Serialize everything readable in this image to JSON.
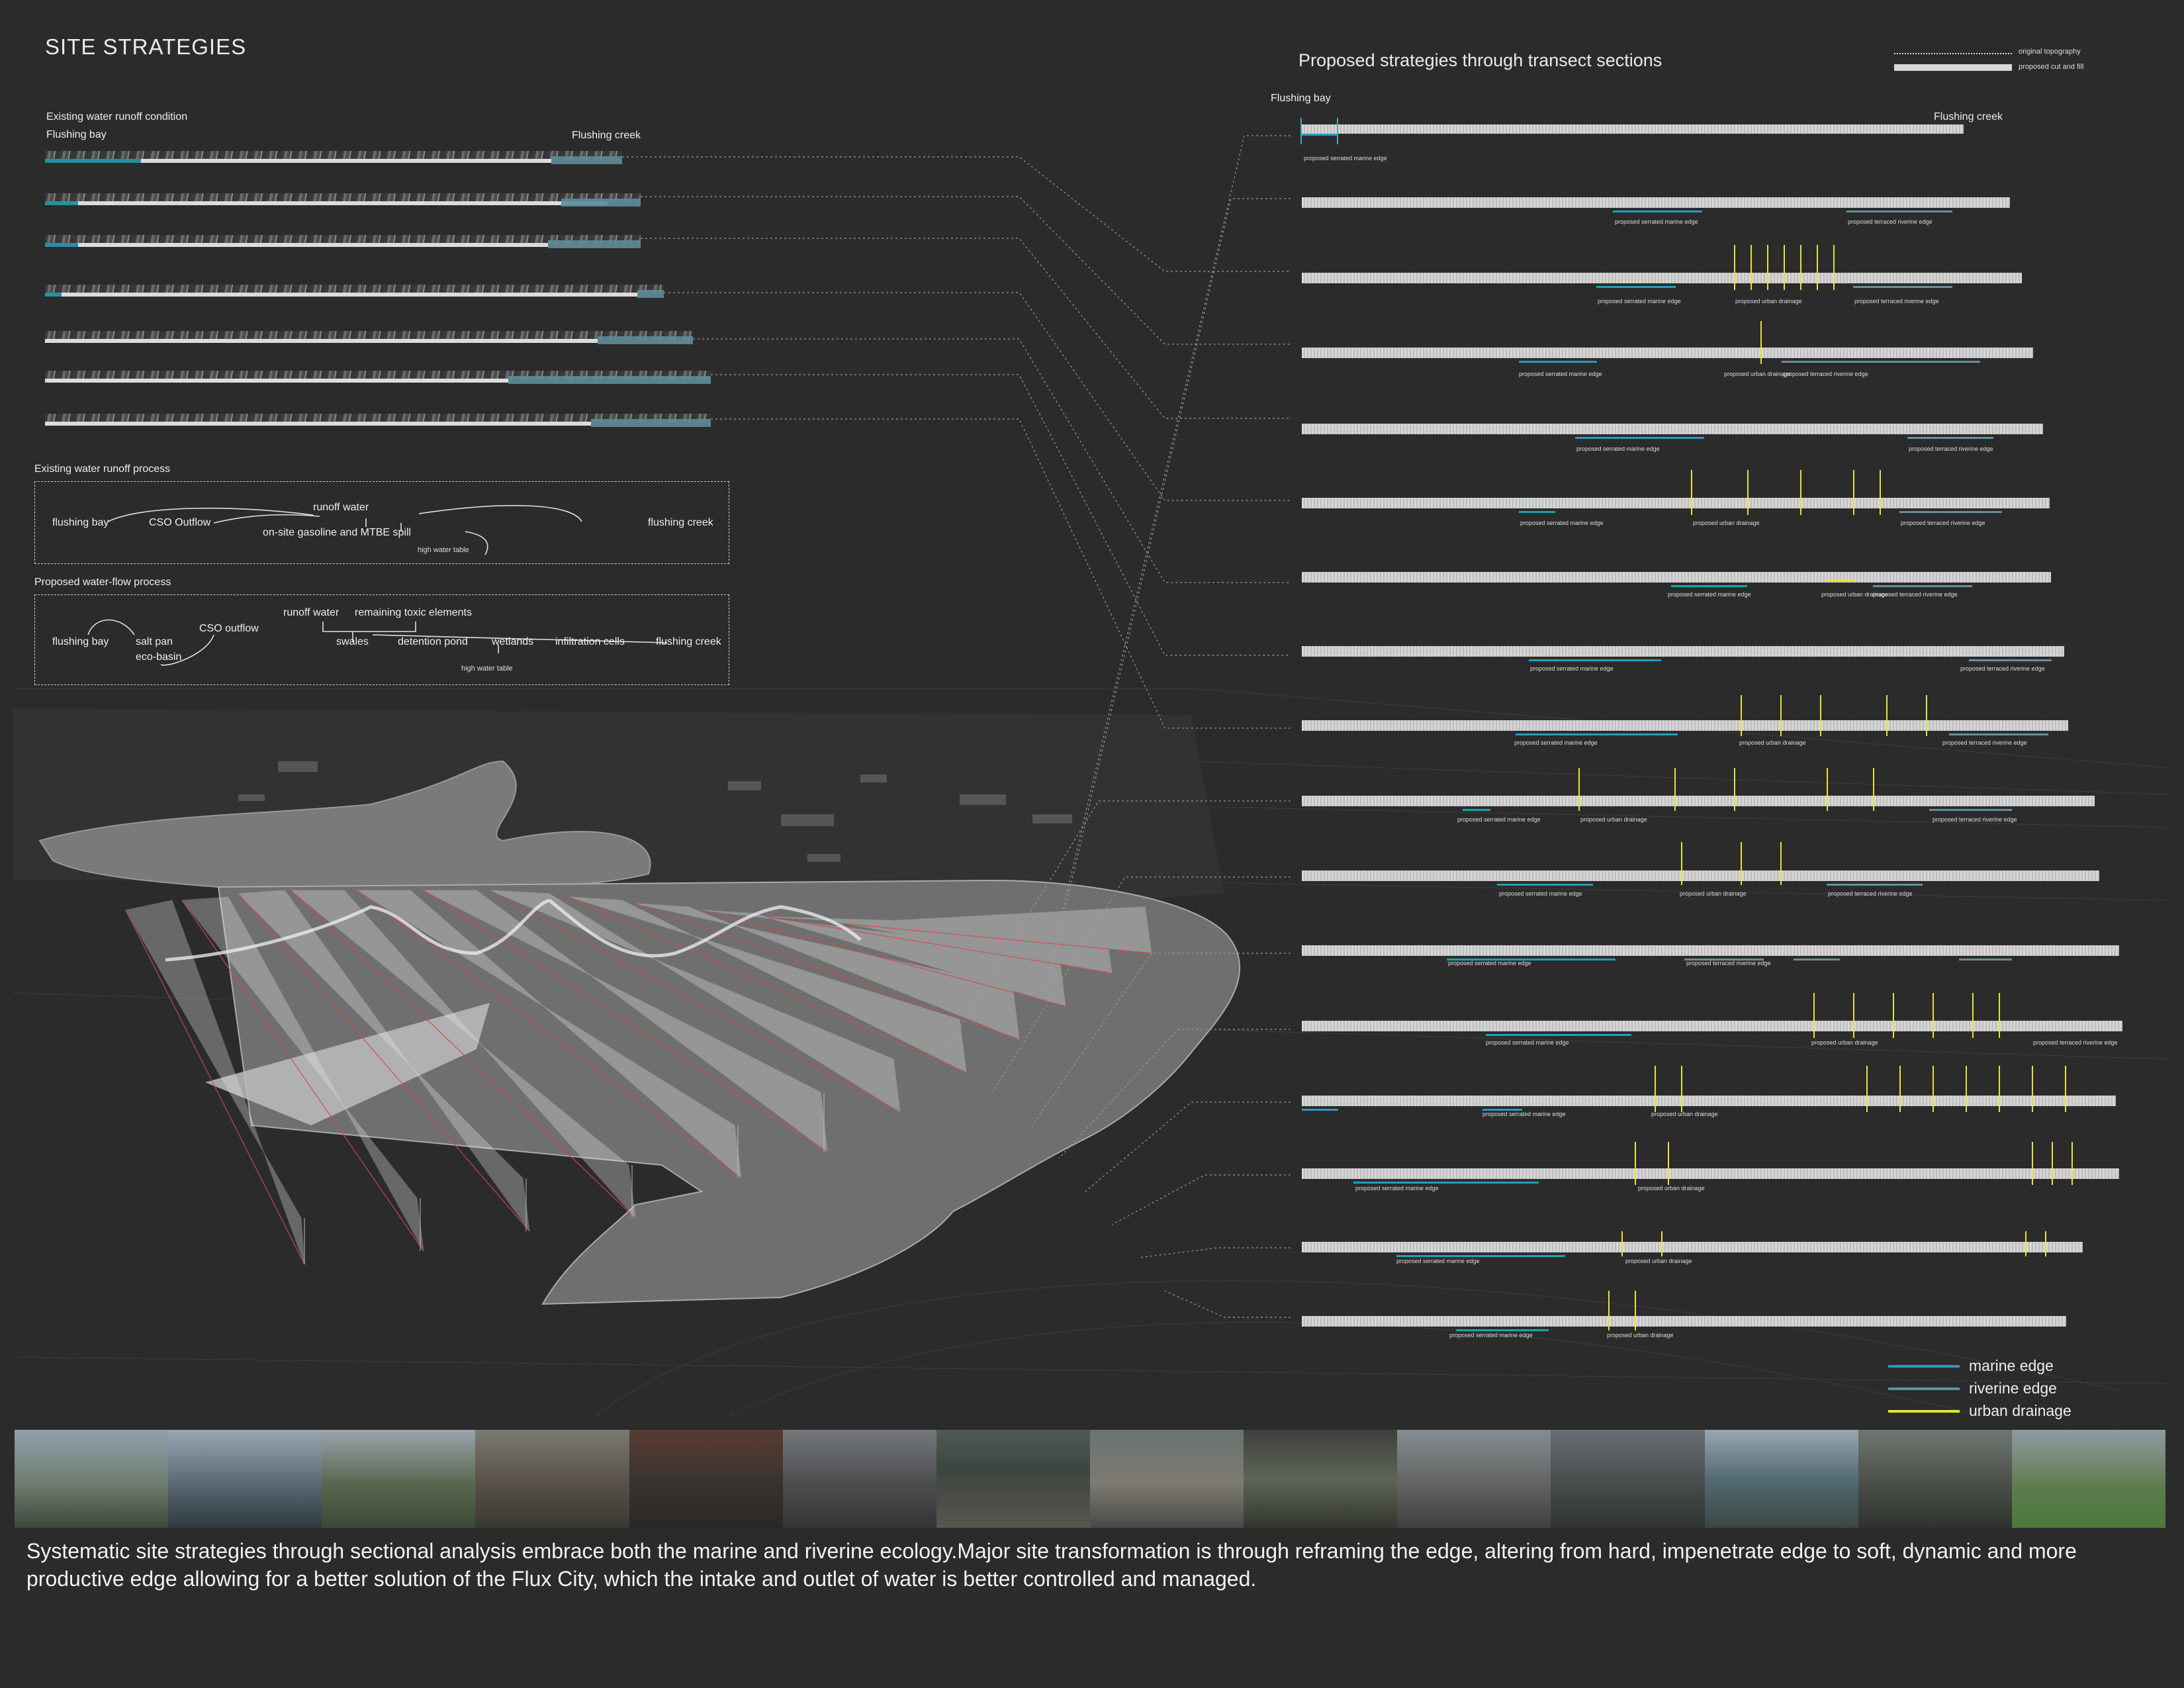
{
  "page": {
    "title": "SITE STRATEGIES",
    "right_title": "Proposed strategies through transect sections",
    "caption": "Systematic site strategies through sectional analysis embrace both the marine and riverine ecology.Major site transformation is through reframing the edge, altering from hard, impenetrate edge to soft, dynamic and more productive edge allowing for a better solution of the Flux City, which the intake and outlet of water is better controlled and managed."
  },
  "existing_runoff": {
    "heading": "Existing water runoff condition",
    "left_label": "Flushing bay",
    "right_label": "Flushing creek"
  },
  "existing_process": {
    "heading": "Existing water runoff process",
    "flushing_bay": "flushing bay",
    "cso": "CSO Outflow",
    "runoff": "runoff water",
    "gasoline": "on-site gasoline and MTBE spill",
    "high_water": "high water table",
    "flushing_creek": "flushing creek"
  },
  "proposed_process": {
    "heading": "Proposed water-flow process",
    "runoff": "runoff water",
    "toxic": "remaining toxic elements",
    "flushing_bay": "flushing bay",
    "salt_pan": "salt pan",
    "eco_basin": "eco-basin",
    "cso": "CSO outflow",
    "swales": "swales",
    "detention": "detention pond",
    "wetlands": "wetlands",
    "infiltration": "infiltration cells",
    "flushing_creek": "flushing creek",
    "high_water": "high water table"
  },
  "topo_legend": {
    "original": "original topography",
    "cut_fill": "proposed cut and fill"
  },
  "sections_header": {
    "left": "Flushing bay",
    "right": "Flushing creek"
  },
  "section_labels": {
    "marine": "proposed serrated marine edge",
    "riverine": "proposed terraced riverine edge",
    "drainage": "proposed urban drainage"
  },
  "legend": {
    "marine": "marine edge",
    "riverine": "riverine edge",
    "drainage": "urban drainage",
    "marine_color": "#1f9fb8",
    "riverine_color": "#64909c",
    "drainage_color": "#e6e23a"
  }
}
